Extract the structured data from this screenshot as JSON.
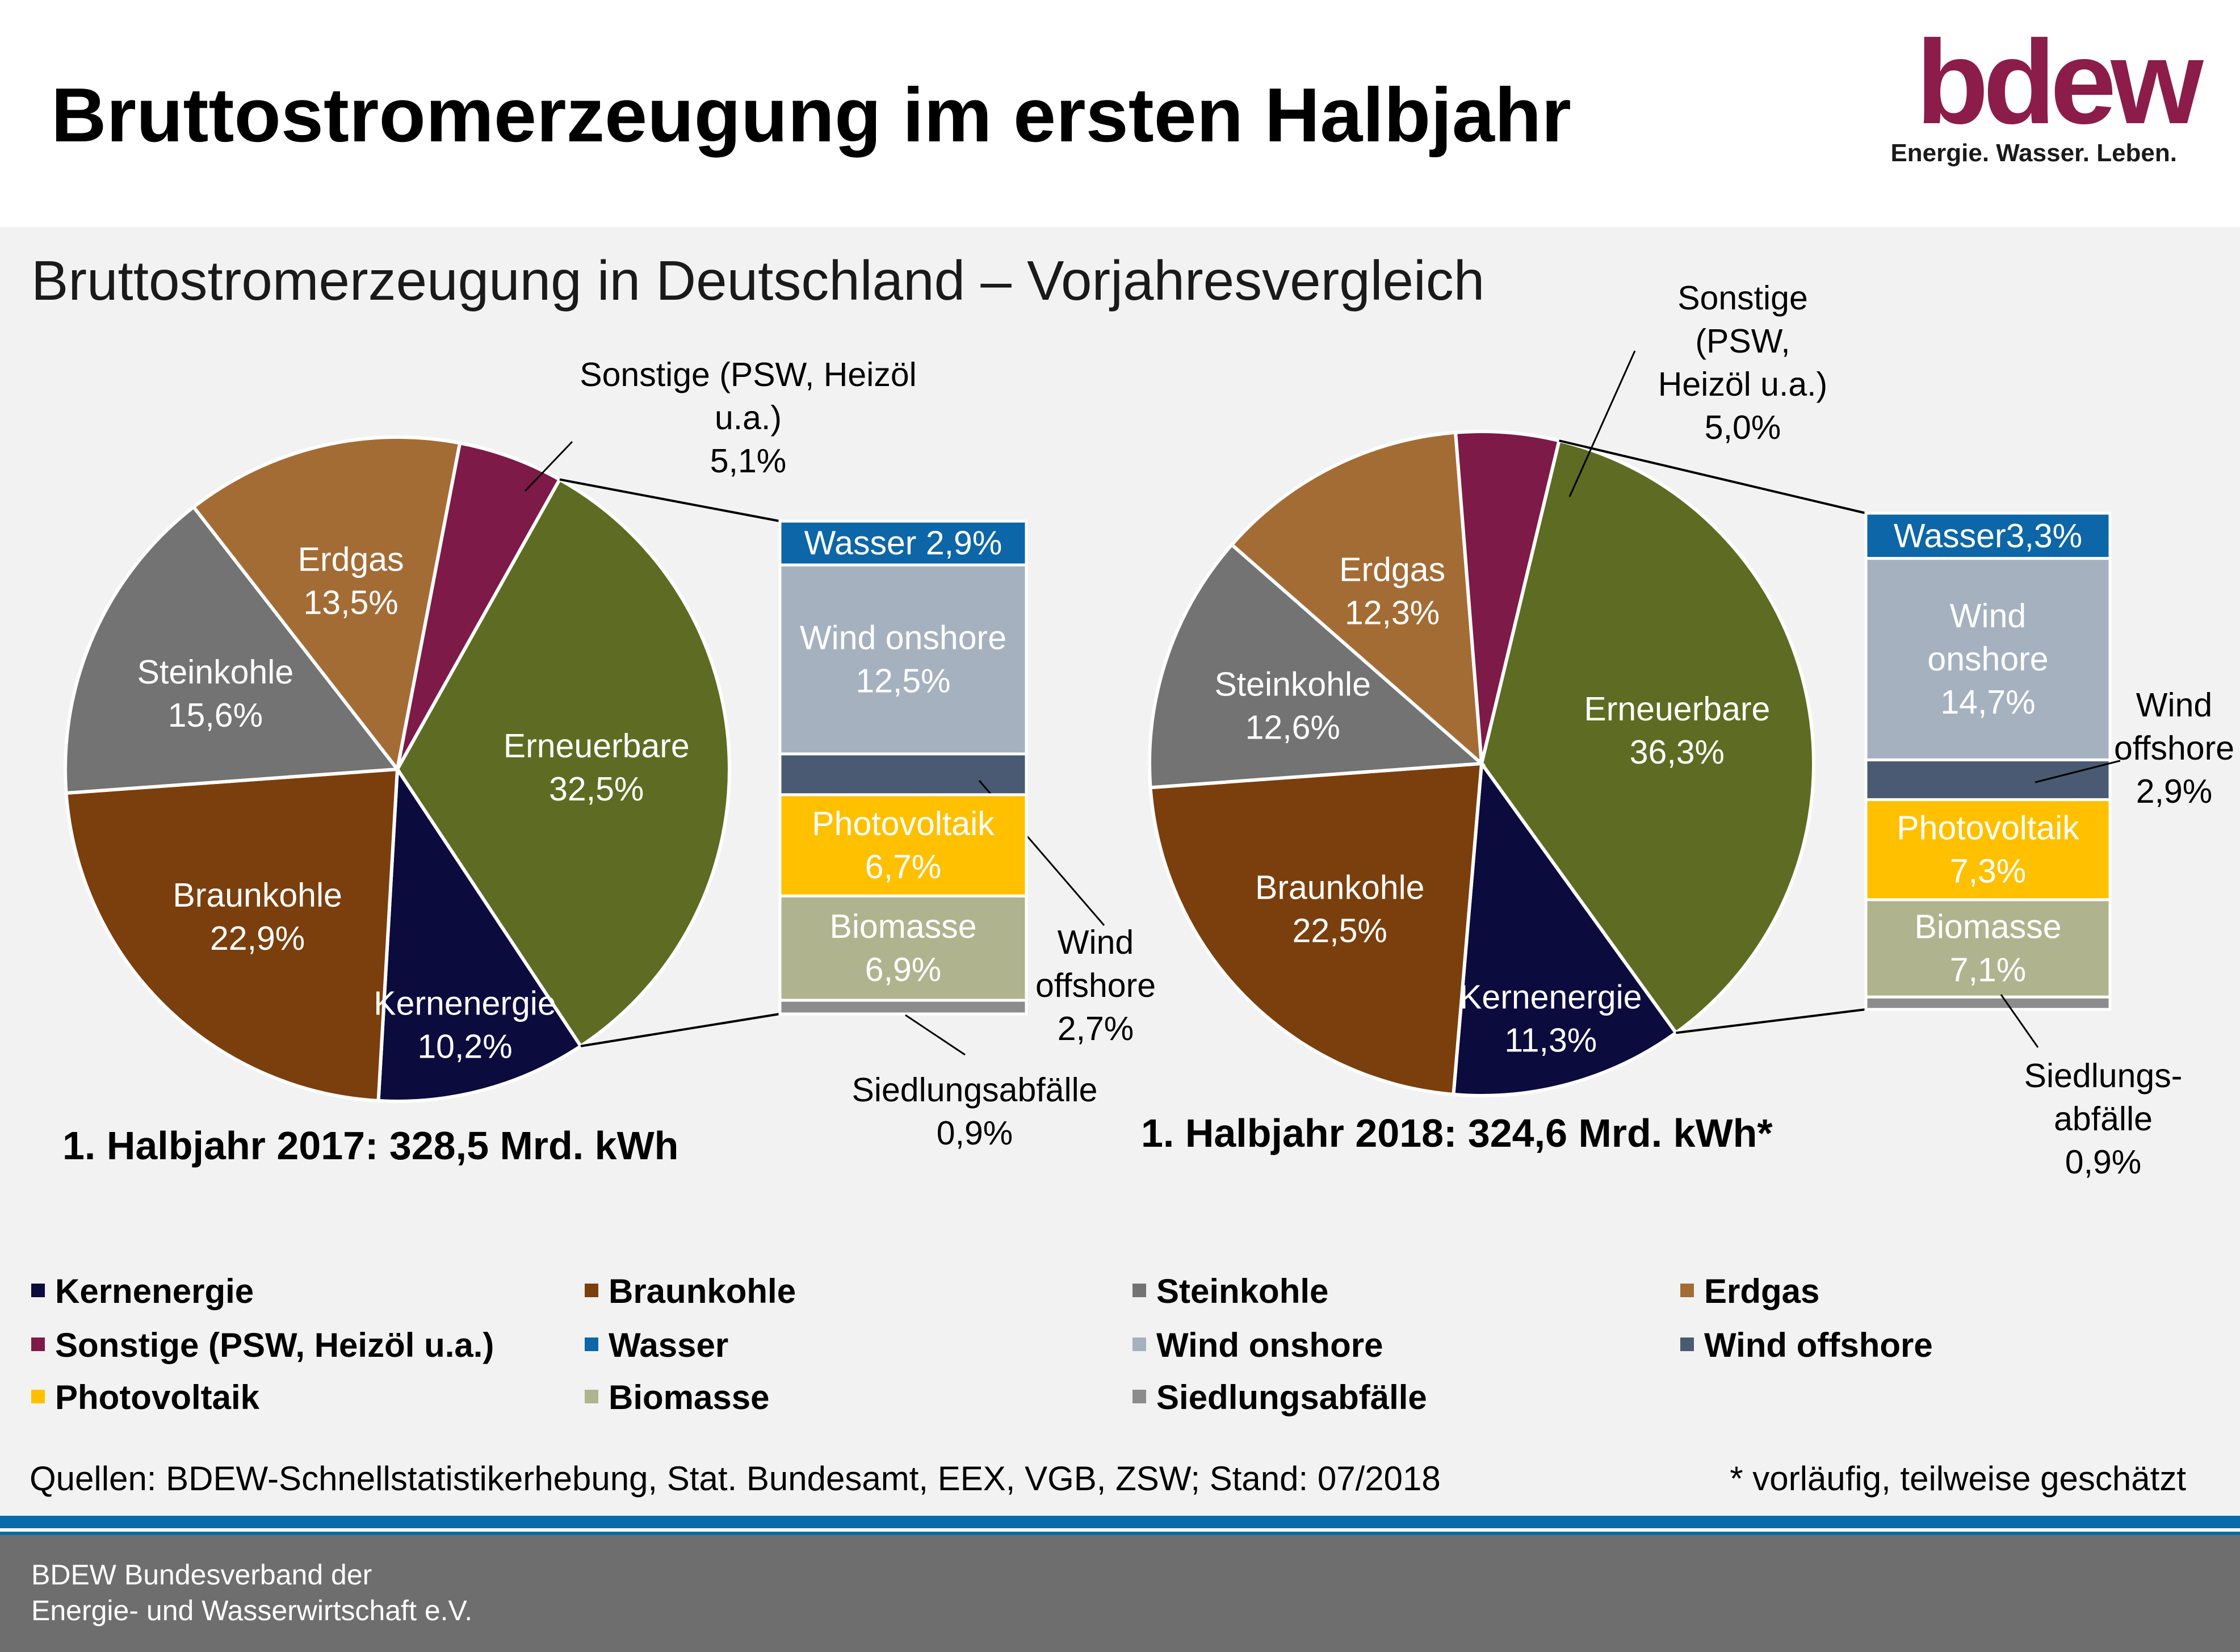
{
  "title": "Bruttostromerzeugung im ersten Halbjahr",
  "subtitle": "Bruttostromerzeugung in Deutschland – Vorjahresvergleich",
  "logo": {
    "word": "bdew",
    "tagline": "Energie. Wasser. Leben."
  },
  "colors": {
    "Kernenergie": "#0b0b3e",
    "Braunkohle": "#7b3f0d",
    "Steinkohle": "#737373",
    "Erdgas": "#a46c35",
    "Sonstige": "#7d1a47",
    "Erneuerbare": "#5e6b22",
    "Wasser": "#0c66a8",
    "Wind onshore": "#a6b1c0",
    "Wind offshore": "#4a5a72",
    "Photovoltaik": "#ffc000",
    "Biomasse": "#b0b48e",
    "Siedlungsabfälle": "#8c8c8c"
  },
  "chart_data": [
    {
      "type": "pie",
      "period": "1. Halbjahr 2017",
      "total_label": "1. Halbjahr 2017:  328,5 Mrd. kWh",
      "unit": "%",
      "slices": [
        {
          "name": "Erneuerbare",
          "value": 32.5,
          "label": [
            "Erneuerbare",
            "32,5%"
          ]
        },
        {
          "name": "Kernenergie",
          "value": 10.2,
          "label": [
            "Kernenergie",
            "10,2%"
          ]
        },
        {
          "name": "Braunkohle",
          "value": 22.9,
          "label": [
            "Braunkohle",
            "22,9%"
          ]
        },
        {
          "name": "Steinkohle",
          "value": 15.6,
          "label": [
            "Steinkohle",
            "15,6%"
          ]
        },
        {
          "name": "Erdgas",
          "value": 13.5,
          "label": [
            "Erdgas",
            "13,5%"
          ]
        },
        {
          "name": "Sonstige",
          "value": 5.1,
          "label": [
            "Sonstige (PSW, Heizöl",
            "u.a.)",
            "5,1%"
          ]
        }
      ],
      "renewables_breakdown": [
        {
          "name": "Wasser",
          "value": 2.9,
          "label": [
            "Wasser 2,9%"
          ]
        },
        {
          "name": "Wind onshore",
          "value": 12.5,
          "label": [
            "Wind onshore",
            "12,5%"
          ]
        },
        {
          "name": "Wind offshore",
          "value": 2.7,
          "label": [
            "Wind",
            "offshore",
            "2,7%"
          ]
        },
        {
          "name": "Photovoltaik",
          "value": 6.7,
          "label": [
            "Photovoltaik",
            "6,7%"
          ]
        },
        {
          "name": "Biomasse",
          "value": 6.9,
          "label": [
            "Biomasse",
            "6,9%"
          ]
        },
        {
          "name": "Siedlungsabfälle",
          "value": 0.9,
          "label": [
            "Siedlungsabfälle",
            "0,9%"
          ]
        }
      ]
    },
    {
      "type": "pie",
      "period": "1. Halbjahr 2018",
      "total_label": "1. Halbjahr 2018: 324,6 Mrd. kWh*",
      "unit": "%",
      "slices": [
        {
          "name": "Erneuerbare",
          "value": 36.3,
          "label": [
            "Erneuerbare",
            "36,3%"
          ]
        },
        {
          "name": "Kernenergie",
          "value": 11.3,
          "label": [
            "Kernenergie",
            "11,3%"
          ]
        },
        {
          "name": "Braunkohle",
          "value": 22.5,
          "label": [
            "Braunkohle",
            "22,5%"
          ]
        },
        {
          "name": "Steinkohle",
          "value": 12.6,
          "label": [
            "Steinkohle",
            "12,6%"
          ]
        },
        {
          "name": "Erdgas",
          "value": 12.3,
          "label": [
            "Erdgas",
            "12,3%"
          ]
        },
        {
          "name": "Sonstige",
          "value": 5.0,
          "label": [
            "Sonstige",
            "(PSW,",
            "Heizöl u.a.)",
            "5,0%"
          ]
        }
      ],
      "renewables_breakdown": [
        {
          "name": "Wasser",
          "value": 3.3,
          "label": [
            "Wasser3,3%"
          ]
        },
        {
          "name": "Wind onshore",
          "value": 14.7,
          "label": [
            "Wind",
            "onshore",
            "14,7%"
          ]
        },
        {
          "name": "Wind offshore",
          "value": 2.9,
          "label": [
            "Wind",
            "offshore",
            "2,9%"
          ]
        },
        {
          "name": "Photovoltaik",
          "value": 7.3,
          "label": [
            "Photovoltaik",
            "7,3%"
          ]
        },
        {
          "name": "Biomasse",
          "value": 7.1,
          "label": [
            "Biomasse",
            "7,1%"
          ]
        },
        {
          "name": "Siedlungsabfälle",
          "value": 0.9,
          "label": [
            "Siedlungs-",
            "abfälle",
            "0,9%"
          ]
        }
      ]
    }
  ],
  "legend": [
    {
      "key": "Kernenergie",
      "label": "Kernenergie"
    },
    {
      "key": "Braunkohle",
      "label": "Braunkohle"
    },
    {
      "key": "Steinkohle",
      "label": "Steinkohle"
    },
    {
      "key": "Erdgas",
      "label": "Erdgas"
    },
    {
      "key": "Sonstige",
      "label": "Sonstige (PSW, Heizöl u.a.)"
    },
    {
      "key": "Wasser",
      "label": "Wasser"
    },
    {
      "key": "Wind onshore",
      "label": "Wind onshore"
    },
    {
      "key": "Wind offshore",
      "label": "Wind offshore"
    },
    {
      "key": "Photovoltaik",
      "label": "Photovoltaik"
    },
    {
      "key": "Biomasse",
      "label": "Biomasse"
    },
    {
      "key": "Siedlungsabfälle",
      "label": "Siedlungsabfälle"
    }
  ],
  "source": "Quellen: BDEW-Schnellstatistikerhebung, Stat. Bundesamt, EEX, VGB, ZSW; Stand: 07/2018",
  "footnote": "* vorläufig, teilweise geschätzt",
  "footer": {
    "line1": "BDEW Bundesverband der",
    "line2": "Energie- und Wasserwirtschaft e.V."
  }
}
